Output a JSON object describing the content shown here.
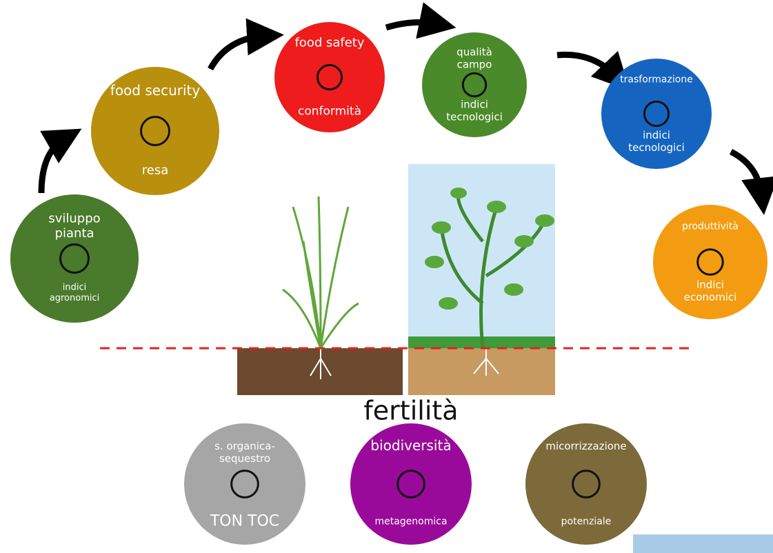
{
  "center_label": "fertilità",
  "nodes": [
    {
      "top": [
        "sviluppo",
        "pianta"
      ],
      "bottom": [
        "indici",
        "agronomici"
      ]
    },
    {
      "top": [
        "food security"
      ],
      "bottom": [
        "resa"
      ]
    },
    {
      "top": [
        "food safety"
      ],
      "bottom": [
        "conformità"
      ]
    },
    {
      "top": [
        "qualità",
        "campo"
      ],
      "bottom": [
        "indici",
        "tecnologici"
      ]
    },
    {
      "top": [
        "trasformazione"
      ],
      "bottom": [
        "indici",
        "tecnologici"
      ]
    },
    {
      "top": [
        "produttività"
      ],
      "bottom": [
        "indici",
        "economici"
      ]
    },
    {
      "top": [
        "s. organica-",
        "sequestro"
      ],
      "bottom": [
        "TON TOC"
      ]
    },
    {
      "top": [
        "biodiversità"
      ],
      "bottom": [
        "metagenomica"
      ]
    },
    {
      "top": [
        "micorrizzazione"
      ],
      "bottom": [
        "potenziale"
      ]
    }
  ]
}
